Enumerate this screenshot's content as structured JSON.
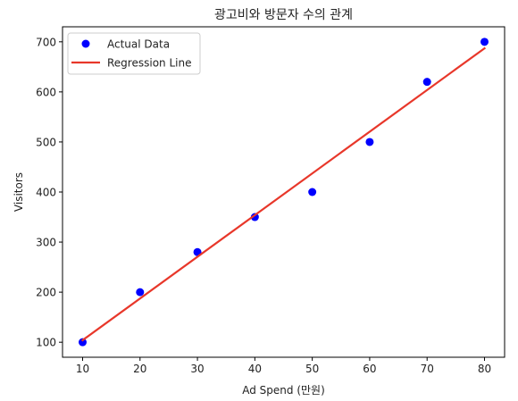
{
  "chart_data": {
    "type": "scatter",
    "title": "광고비와 방문자 수의 관계",
    "xlabel": "Ad Spend (만원)",
    "ylabel": "Visitors",
    "xlim": [
      6.5,
      83.5
    ],
    "ylim": [
      70,
      730
    ],
    "xticks": [
      10,
      20,
      30,
      40,
      50,
      60,
      70,
      80
    ],
    "yticks": [
      100,
      200,
      300,
      400,
      500,
      600,
      700
    ],
    "grid": false,
    "legend_position": "upper-left",
    "series": [
      {
        "name": "Actual Data",
        "kind": "scatter",
        "color": "#0000ff",
        "x": [
          10,
          20,
          30,
          40,
          50,
          60,
          70,
          80
        ],
        "y": [
          100,
          200,
          280,
          350,
          400,
          500,
          620,
          700
        ]
      },
      {
        "name": "Regression Line",
        "kind": "line",
        "color": "#e8372a",
        "x": [
          10,
          80
        ],
        "y": [
          104,
          687
        ]
      }
    ]
  }
}
